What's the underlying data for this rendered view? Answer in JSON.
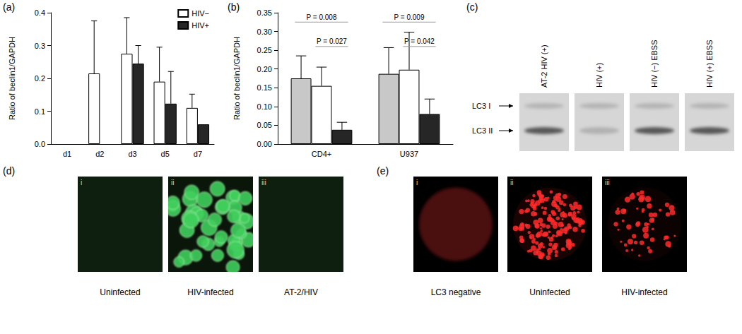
{
  "chart_data": [
    {
      "panel": "(a)",
      "type": "bar",
      "y_label": "Ratio of beclin1/GAPDH",
      "categories": [
        "d1",
        "d2",
        "d3",
        "d5",
        "d7"
      ],
      "series": [
        {
          "name": "HIV−",
          "color": "#ffffff",
          "values": [
            null,
            0.215,
            0.275,
            0.19,
            0.11
          ],
          "errors": [
            null,
            0.16,
            0.11,
            0.105,
            0.042
          ]
        },
        {
          "name": "HIV+",
          "color": "#262626",
          "values": [
            null,
            null,
            0.245,
            0.123,
            0.06
          ],
          "errors": [
            null,
            null,
            0.055,
            0.098,
            null
          ]
        }
      ],
      "ylim": [
        0,
        0.4
      ],
      "yticks": [
        {
          "value": 0,
          "label": "0.0"
        },
        0.1,
        0.2,
        0.3,
        0.4
      ],
      "legend": "top-right",
      "grid": false
    },
    {
      "panel": "(b)",
      "type": "bar",
      "y_label": "Ratio of beclin1/GAPDH",
      "categories": [
        "CD4+",
        "U937"
      ],
      "series": [
        {
          "color": "#c8c8c8",
          "values": [
            0.175,
            0.187
          ],
          "errors": [
            0.06,
            0.07
          ]
        },
        {
          "color": "#ffffff",
          "values": [
            0.155,
            0.198
          ],
          "errors": [
            0.05,
            0.1
          ]
        },
        {
          "color": "#262626",
          "values": [
            0.038,
            0.08
          ],
          "errors": [
            0.02,
            0.04
          ]
        }
      ],
      "ylim": [
        0,
        0.35
      ],
      "yticks": [
        {
          "value": 0,
          "label": "0.00"
        },
        0.05,
        {
          "value": 0.1,
          "label": "0.10"
        },
        0.15,
        {
          "value": 0.2,
          "label": "0.20"
        },
        0.25,
        {
          "value": 0.3,
          "label": "0.30"
        },
        0.35
      ],
      "annotations": [
        {
          "text": "P = 0.008",
          "category": "CD4+",
          "from": 0,
          "to": 2,
          "y": 0.325
        },
        {
          "text": "P = 0.027",
          "category": "CD4+",
          "from": 1,
          "to": 2,
          "y": 0.26
        },
        {
          "text": "P = 0.009",
          "category": "U937",
          "from": 0,
          "to": 2,
          "y": 0.325
        },
        {
          "text": "P = 0.042",
          "category": "U937",
          "from": 1,
          "to": 2,
          "y": 0.26
        }
      ],
      "grid": false
    }
  ],
  "blot": {
    "panel": "(c)",
    "lanes": [
      "AT-2 HIV (+)",
      "HIV (+)",
      "HIV (−) EBSS",
      "HIV (+) EBSS"
    ],
    "bands": [
      "LC3 I",
      "LC3 II"
    ]
  },
  "images": [
    {
      "panel": "(d)",
      "items": [
        {
          "tag": "i",
          "caption": "Uninfected"
        },
        {
          "tag": "ii",
          "caption": "HIV-infected"
        },
        {
          "tag": "iii",
          "caption": "AT-2/HIV"
        }
      ]
    },
    {
      "panel": "(e)",
      "items": [
        {
          "tag": "i",
          "caption": "LC3 negative"
        },
        {
          "tag": "ii",
          "caption": "Uninfected"
        },
        {
          "tag": "iii",
          "caption": "HIV-infected"
        }
      ]
    }
  ]
}
